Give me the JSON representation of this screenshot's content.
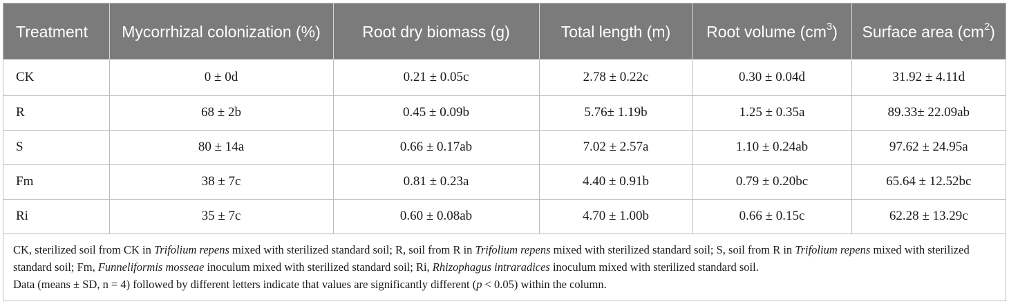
{
  "table": {
    "headers": [
      {
        "main": "Treatment",
        "sup": ""
      },
      {
        "main": "Mycorrhizal colonization (%)",
        "sup": ""
      },
      {
        "main": "Root dry biomass (g)",
        "sup": ""
      },
      {
        "main": "Total length (m)",
        "sup": ""
      },
      {
        "main": "Root volume (cm",
        "sup": "3",
        "end": ")"
      },
      {
        "main": "Surface area (cm",
        "sup": "2",
        "end": ")"
      }
    ],
    "rows": [
      [
        "CK",
        "0 ± 0d",
        "0.21 ± 0.05c",
        "2.78 ± 0.22c",
        "0.30 ± 0.04d",
        "31.92 ± 4.11d"
      ],
      [
        "R",
        "68 ± 2b",
        "0.45 ± 0.09b",
        "5.76± 1.19b",
        "1.25 ± 0.35a",
        "89.33± 22.09ab"
      ],
      [
        "S",
        "80 ± 14a",
        "0.66 ± 0.17ab",
        "7.02 ± 2.57a",
        "1.10 ± 0.24ab",
        "97.62 ± 24.95a"
      ],
      [
        "Fm",
        "38 ± 7c",
        "0.81 ± 0.23a",
        "4.40 ± 0.91b",
        "0.79 ± 0.20bc",
        "65.64 ± 12.52bc"
      ],
      [
        "Ri",
        "35 ± 7c",
        "0.60 ± 0.08ab",
        "4.70 ± 1.00b",
        "0.66 ± 0.15c",
        "62.28 ± 13.29c"
      ]
    ]
  },
  "footnote": {
    "line1": [
      {
        "t": "CK, sterilized soil from CK in ",
        "i": false
      },
      {
        "t": "Trifolium repens",
        "i": true
      },
      {
        "t": " mixed with sterilized standard soil; R, soil from R in ",
        "i": false
      },
      {
        "t": "Trifolium repens",
        "i": true
      },
      {
        "t": " mixed with sterilized standard soil; S, soil from R in ",
        "i": false
      },
      {
        "t": "Trifolium repens",
        "i": true
      },
      {
        "t": " mixed with sterilized standard soil; Fm, ",
        "i": false
      },
      {
        "t": "Funneliformis mosseae",
        "i": true
      },
      {
        "t": " inoculum mixed with sterilized standard soil; Ri, ",
        "i": false
      },
      {
        "t": "Rhizophagus intraradices",
        "i": true
      },
      {
        "t": " inoculum mixed with sterilized standard soil.",
        "i": false
      }
    ],
    "line2": [
      {
        "t": "Data (means ± SD, n = 4) followed by different letters indicate that values are significantly different (",
        "i": false
      },
      {
        "t": "p",
        "i": true
      },
      {
        "t": " < 0.05) within the column.",
        "i": false
      }
    ]
  },
  "colors": {
    "header_bg": "#7b7b7b",
    "header_text": "#ffffff",
    "border": "#bdbdbd"
  }
}
